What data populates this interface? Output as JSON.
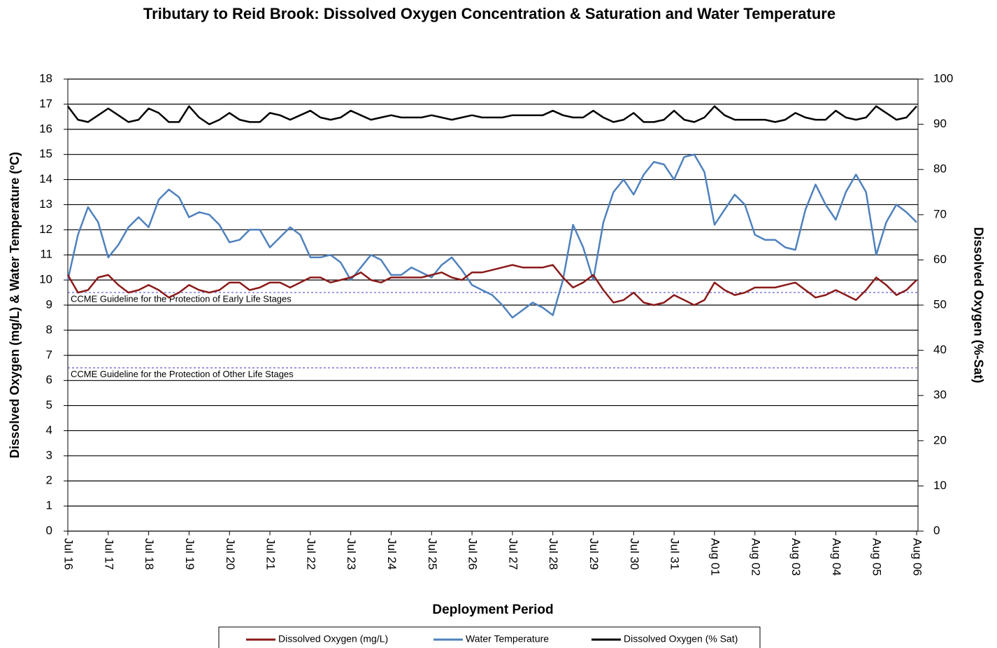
{
  "chart_data": {
    "type": "line",
    "title": "Tributary to Reid Brook: Dissolved Oxygen Concentration & Saturation and Water Temperature",
    "x_label": "Deployment Period",
    "y_label": "Dissolved  Oxygen (mg/L) & Water Temperature (ºC)",
    "y2_label": "Dissolved  Oxygen (%-Sat)",
    "categories": [
      "Jul 16",
      null,
      null,
      null,
      "Jul 17",
      null,
      null,
      null,
      "Jul 18",
      null,
      null,
      null,
      "Jul 19",
      null,
      null,
      null,
      "Jul 20",
      null,
      null,
      null,
      "Jul 21",
      null,
      null,
      null,
      "Jul 22",
      null,
      null,
      null,
      "Jul 23",
      null,
      null,
      null,
      "Jul 24",
      null,
      null,
      null,
      "Jul 25",
      null,
      null,
      null,
      "Jul 26",
      null,
      null,
      null,
      "Jul 27",
      null,
      null,
      null,
      "Jul 28",
      null,
      null,
      null,
      "Jul 29",
      null,
      null,
      null,
      "Jul 30",
      null,
      null,
      null,
      "Jul 31",
      null,
      null,
      null,
      "Aug 01",
      null,
      null,
      null,
      "Aug 02",
      null,
      null,
      null,
      "Aug 03",
      null,
      null,
      null,
      "Aug 04",
      null,
      null,
      null,
      "Aug 05",
      null,
      null,
      null,
      "Aug 06"
    ],
    "ylim": [
      0,
      18
    ],
    "yticks": [
      0,
      1,
      2,
      3,
      4,
      5,
      6,
      7,
      8,
      9,
      10,
      11,
      12,
      13,
      14,
      15,
      16,
      17,
      18
    ],
    "y2lim": [
      0,
      100
    ],
    "y2ticks": [
      0,
      10,
      20,
      30,
      40,
      50,
      60,
      70,
      80,
      90,
      100
    ],
    "grid": true,
    "guidelines": [
      {
        "value": 9.5,
        "label": "CCME Guideline  for the Protection of Early Life Stages"
      },
      {
        "value": 6.5,
        "label": "CCME Guideline  for the Protection of Other Life Stages"
      }
    ],
    "series": [
      {
        "name": "Dissolved Oxygen (mg/L)",
        "color": "#8b1a1a",
        "values": [
          10.2,
          9.5,
          9.6,
          10.1,
          10.2,
          9.8,
          9.5,
          9.6,
          9.8,
          9.6,
          9.3,
          9.5,
          9.8,
          9.6,
          9.5,
          9.6,
          9.9,
          9.9,
          9.6,
          9.7,
          9.9,
          9.9,
          9.7,
          9.9,
          10.1,
          10.1,
          9.9,
          10.0,
          10.1,
          10.3,
          10.0,
          9.9,
          10.1,
          10.1,
          10.1,
          10.1,
          10.2,
          10.3,
          10.1,
          10.0,
          10.3,
          10.3,
          10.4,
          10.5,
          10.6,
          10.5,
          10.5,
          10.5,
          10.6,
          10.1,
          9.7,
          9.9,
          10.2,
          9.6,
          9.1,
          9.2,
          9.5,
          9.1,
          9.0,
          9.1,
          9.4,
          9.2,
          9.0,
          9.2,
          9.9,
          9.6,
          9.4,
          9.5,
          9.7,
          9.7,
          9.7,
          9.8,
          9.9,
          9.6,
          9.3,
          9.4,
          9.6,
          9.4,
          9.2,
          9.6,
          10.1,
          9.8,
          9.4,
          9.6,
          10.0
        ]
      },
      {
        "name": "Water Temperature",
        "color": "#4f81bd",
        "values": [
          10.0,
          11.8,
          12.9,
          12.3,
          10.9,
          11.4,
          12.1,
          12.5,
          12.1,
          13.2,
          13.6,
          13.3,
          12.5,
          12.7,
          12.6,
          12.2,
          11.5,
          11.6,
          12.0,
          12.0,
          11.3,
          11.7,
          12.1,
          11.8,
          10.9,
          10.9,
          11.0,
          10.7,
          10.0,
          10.5,
          11.0,
          10.8,
          10.2,
          10.2,
          10.5,
          10.3,
          10.1,
          10.6,
          10.9,
          10.4,
          9.8,
          9.6,
          9.4,
          9.0,
          8.5,
          8.8,
          9.1,
          8.9,
          8.6,
          10.0,
          12.2,
          11.3,
          10.0,
          12.3,
          13.5,
          14.0,
          13.4,
          14.2,
          14.7,
          14.6,
          14.0,
          14.9,
          15.0,
          14.3,
          12.2,
          12.8,
          13.4,
          13.0,
          11.8,
          11.6,
          11.6,
          11.3,
          11.2,
          12.8,
          13.8,
          13.0,
          12.4,
          13.5,
          14.2,
          13.5,
          11.0,
          12.3,
          13.0,
          12.7,
          12.3
        ]
      },
      {
        "name": "Dissolved Oxygen (% Sat)",
        "color": "#000000",
        "axis": "y2",
        "values": [
          94,
          91,
          90.5,
          92,
          93.5,
          92,
          90.5,
          91,
          93.5,
          92.5,
          90.5,
          90.5,
          94,
          91.5,
          90,
          91,
          92.5,
          91,
          90.5,
          90.5,
          92.5,
          92,
          91,
          92,
          93,
          91.5,
          91,
          91.5,
          93,
          92,
          91,
          91.5,
          92,
          91.5,
          91.5,
          91.5,
          92,
          91.5,
          91,
          91.5,
          92,
          91.5,
          91.5,
          91.5,
          92,
          92,
          92,
          92,
          93,
          92,
          91.5,
          91.5,
          93,
          91.5,
          90.5,
          91,
          92.5,
          90.5,
          90.5,
          91,
          93,
          91,
          90.5,
          91.5,
          94,
          92,
          91,
          91,
          91,
          91,
          90.5,
          91,
          92.5,
          91.5,
          91,
          91,
          93,
          91.5,
          91,
          91.5,
          94,
          92.5,
          91,
          91.5,
          94
        ]
      }
    ]
  }
}
